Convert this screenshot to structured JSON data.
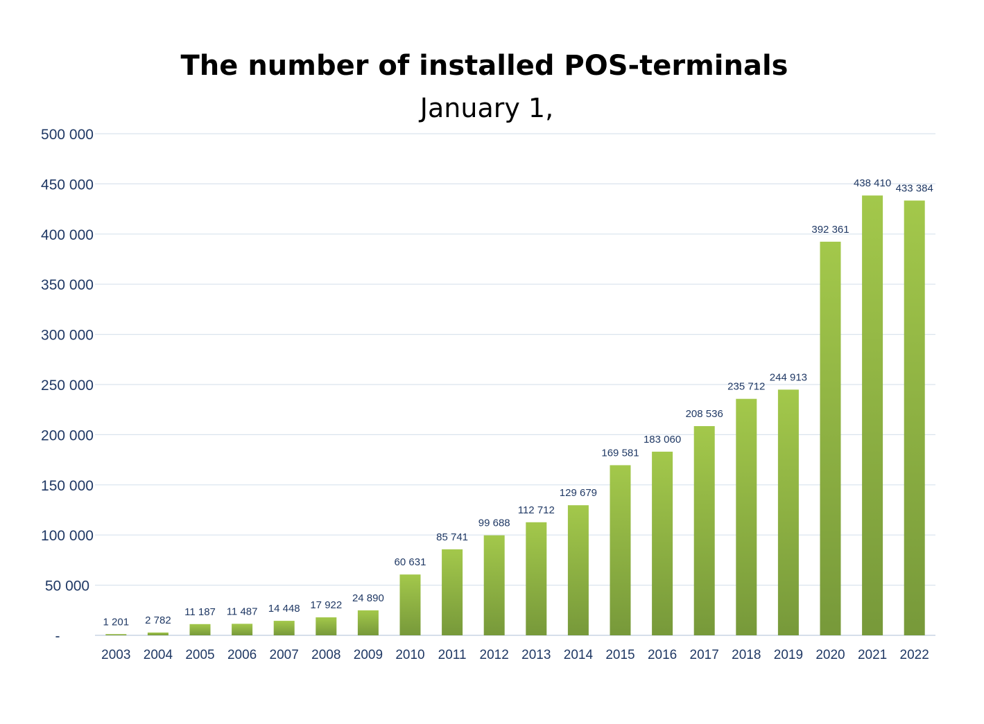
{
  "chart_data": {
    "type": "bar",
    "title": "The number of installed POS-terminals",
    "subtitle": "January 1,",
    "xlabel": "",
    "ylabel": "",
    "ylim": [
      0,
      500000
    ],
    "grid": true,
    "legend": "none",
    "y_ticks": [
      0,
      50000,
      100000,
      150000,
      200000,
      250000,
      300000,
      350000,
      400000,
      450000,
      500000
    ],
    "y_tick_labels": [
      "-",
      "50 000",
      "100 000",
      "150 000",
      "200 000",
      "250 000",
      "300 000",
      "350 000",
      "400 000",
      "450 000",
      "500 000"
    ],
    "categories": [
      "2003",
      "2004",
      "2005",
      "2006",
      "2007",
      "2008",
      "2009",
      "2010",
      "2011",
      "2012",
      "2013",
      "2014",
      "2015",
      "2016",
      "2017",
      "2018",
      "2019",
      "2020",
      "2021",
      "2022"
    ],
    "values": [
      1201,
      2782,
      11187,
      11487,
      14448,
      17922,
      24890,
      60631,
      85741,
      99688,
      112712,
      129679,
      169581,
      183060,
      208536,
      235712,
      244913,
      392361,
      438410,
      433384
    ],
    "data_labels": [
      "1 201",
      "2 782",
      "11 187",
      "11 487",
      "14 448",
      "17 922",
      "24 890",
      "60 631",
      "85 741",
      "99 688",
      "112 712",
      "129 679",
      "169 581",
      "183 060",
      "208 536",
      "235 712",
      "244 913",
      "392 361",
      "438 410",
      "433 384"
    ],
    "colors": {
      "bar_top": "#a3c84b",
      "bar_bottom": "#77993a",
      "grid": "#d9e3ee",
      "axis": "#c8d4e3",
      "text": "#1f3864"
    }
  }
}
